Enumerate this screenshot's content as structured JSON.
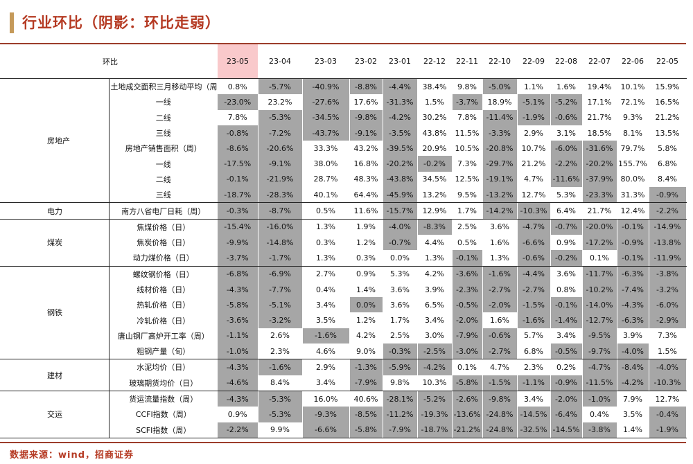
{
  "title": "行业环比（阴影：环比走弱）",
  "header": {
    "label": "环比",
    "columns": [
      "23-05",
      "23-04",
      "23-03",
      "23-02",
      "23-01",
      "22-12",
      "22-11",
      "22-10",
      "22-09",
      "22-08",
      "22-07",
      "22-06",
      "22-05"
    ]
  },
  "colors": {
    "accent": "#b53a23",
    "shade": "#a6a6a6",
    "current_header": "#f9c9cb"
  },
  "sections": [
    {
      "name": "房地产",
      "rows": [
        {
          "label": "土地成交面积三月移动平均（周）",
          "values": [
            "0.8%",
            "-5.7%",
            "-40.9%",
            "-8.8%",
            "-4.4%",
            "38.4%",
            "9.8%",
            "-5.0%",
            "1.1%",
            "1.6%",
            "19.4%",
            "10.1%",
            "15.9%"
          ],
          "shaded": [
            0,
            1,
            1,
            1,
            1,
            0,
            0,
            1,
            0,
            0,
            0,
            0,
            0
          ]
        },
        {
          "label": "一线",
          "values": [
            "-23.0%",
            "23.2%",
            "-27.6%",
            "17.6%",
            "-31.3%",
            "1.5%",
            "-3.7%",
            "18.9%",
            "-5.1%",
            "-5.2%",
            "17.1%",
            "72.1%",
            "16.5%"
          ],
          "shaded": [
            1,
            0,
            1,
            0,
            1,
            0,
            1,
            0,
            1,
            1,
            0,
            0,
            0
          ]
        },
        {
          "label": "二线",
          "values": [
            "7.8%",
            "-5.3%",
            "-34.5%",
            "-9.8%",
            "-4.2%",
            "30.2%",
            "7.8%",
            "-11.4%",
            "-1.9%",
            "-0.6%",
            "21.7%",
            "9.3%",
            "21.2%"
          ],
          "shaded": [
            0,
            1,
            1,
            1,
            1,
            0,
            0,
            1,
            1,
            1,
            0,
            0,
            0
          ]
        },
        {
          "label": "三线",
          "values": [
            "-0.8%",
            "-7.2%",
            "-43.7%",
            "-9.1%",
            "-3.5%",
            "43.8%",
            "11.5%",
            "-3.3%",
            "2.9%",
            "3.1%",
            "18.5%",
            "8.1%",
            "13.5%"
          ],
          "shaded": [
            1,
            1,
            1,
            1,
            1,
            0,
            0,
            1,
            0,
            0,
            0,
            0,
            0
          ]
        },
        {
          "label": "房地产销售面积（周）",
          "values": [
            "-8.6%",
            "-20.6%",
            "33.3%",
            "43.2%",
            "-39.5%",
            "20.9%",
            "10.5%",
            "-20.8%",
            "10.7%",
            "-6.0%",
            "-31.6%",
            "79.7%",
            "5.8%"
          ],
          "shaded": [
            1,
            1,
            0,
            0,
            1,
            0,
            0,
            1,
            0,
            1,
            1,
            0,
            0
          ]
        },
        {
          "label": "一线",
          "values": [
            "-17.5%",
            "-9.1%",
            "38.0%",
            "16.8%",
            "-20.2%",
            "-0.2%",
            "7.3%",
            "-29.7%",
            "21.2%",
            "-2.2%",
            "-20.2%",
            "155.7%",
            "6.8%"
          ],
          "shaded": [
            1,
            1,
            0,
            0,
            1,
            1,
            0,
            1,
            0,
            1,
            1,
            0,
            0
          ]
        },
        {
          "label": "二线",
          "values": [
            "-0.1%",
            "-21.9%",
            "28.7%",
            "48.3%",
            "-43.8%",
            "34.5%",
            "12.5%",
            "-19.1%",
            "4.7%",
            "-11.6%",
            "-37.9%",
            "80.0%",
            "8.4%"
          ],
          "shaded": [
            1,
            1,
            0,
            0,
            1,
            0,
            0,
            1,
            0,
            1,
            1,
            0,
            0
          ]
        },
        {
          "label": "三线",
          "values": [
            "-18.7%",
            "-28.3%",
            "40.1%",
            "64.4%",
            "-45.9%",
            "13.2%",
            "9.5%",
            "-13.2%",
            "12.7%",
            "5.3%",
            "-23.3%",
            "31.3%",
            "-0.9%"
          ],
          "shaded": [
            1,
            1,
            0,
            0,
            1,
            0,
            0,
            1,
            0,
            0,
            1,
            0,
            1
          ]
        }
      ]
    },
    {
      "name": "电力",
      "rows": [
        {
          "label": "南方八省电厂日耗（周）",
          "values": [
            "-0.3%",
            "-8.7%",
            "0.5%",
            "11.6%",
            "-15.7%",
            "12.9%",
            "1.7%",
            "-14.2%",
            "-10.3%",
            "6.4%",
            "21.7%",
            "12.4%",
            "-2.2%"
          ],
          "shaded": [
            1,
            1,
            0,
            0,
            1,
            0,
            0,
            1,
            1,
            0,
            0,
            0,
            1
          ]
        }
      ]
    },
    {
      "name": "煤炭",
      "rows": [
        {
          "label": "焦煤价格（日）",
          "values": [
            "-15.4%",
            "-16.0%",
            "1.3%",
            "1.9%",
            "-4.0%",
            "-8.3%",
            "2.5%",
            "3.6%",
            "-4.7%",
            "-0.7%",
            "-20.0%",
            "-0.1%",
            "-14.9%"
          ],
          "shaded": [
            1,
            1,
            0,
            0,
            1,
            1,
            0,
            0,
            1,
            1,
            1,
            1,
            1
          ]
        },
        {
          "label": "焦炭价格（日）",
          "values": [
            "-9.9%",
            "-14.8%",
            "0.3%",
            "1.2%",
            "-0.7%",
            "4.4%",
            "0.5%",
            "1.6%",
            "-6.6%",
            "0.9%",
            "-17.2%",
            "-0.9%",
            "-13.8%"
          ],
          "shaded": [
            1,
            1,
            0,
            0,
            1,
            0,
            0,
            0,
            1,
            0,
            1,
            1,
            1
          ]
        },
        {
          "label": "动力煤价格（日）",
          "values": [
            "-3.7%",
            "-1.7%",
            "1.3%",
            "0.3%",
            "0.0%",
            "1.3%",
            "-0.1%",
            "1.3%",
            "-0.6%",
            "-0.2%",
            "0.1%",
            "-0.1%",
            "-11.9%"
          ],
          "shaded": [
            1,
            1,
            0,
            0,
            0,
            0,
            1,
            0,
            1,
            1,
            0,
            1,
            1
          ]
        }
      ]
    },
    {
      "name": "钢铁",
      "rows": [
        {
          "label": "螺纹钢价格（日）",
          "values": [
            "-6.8%",
            "-6.9%",
            "2.7%",
            "0.9%",
            "5.3%",
            "4.2%",
            "-3.6%",
            "-1.6%",
            "-4.4%",
            "3.6%",
            "-11.7%",
            "-6.3%",
            "-3.8%"
          ],
          "shaded": [
            1,
            1,
            0,
            0,
            0,
            0,
            1,
            1,
            1,
            0,
            1,
            1,
            1
          ]
        },
        {
          "label": "线材价格（日）",
          "values": [
            "-4.3%",
            "-7.7%",
            "0.4%",
            "1.4%",
            "3.6%",
            "3.9%",
            "-2.3%",
            "-2.7%",
            "-2.7%",
            "0.8%",
            "-10.2%",
            "-7.4%",
            "-3.2%"
          ],
          "shaded": [
            1,
            1,
            0,
            0,
            0,
            0,
            1,
            1,
            1,
            0,
            1,
            1,
            1
          ]
        },
        {
          "label": "热轧价格（日）",
          "values": [
            "-5.8%",
            "-5.1%",
            "3.4%",
            "0.0%",
            "3.6%",
            "6.5%",
            "-0.5%",
            "-2.0%",
            "-1.5%",
            "-0.1%",
            "-14.0%",
            "-4.3%",
            "-6.0%"
          ],
          "shaded": [
            1,
            1,
            0,
            1,
            0,
            0,
            1,
            1,
            1,
            1,
            1,
            1,
            1
          ]
        },
        {
          "label": "冷轧价格（日）",
          "values": [
            "-3.6%",
            "-3.2%",
            "3.5%",
            "1.2%",
            "1.7%",
            "3.4%",
            "-2.0%",
            "1.6%",
            "-1.6%",
            "-1.4%",
            "-12.7%",
            "-6.3%",
            "-2.9%"
          ],
          "shaded": [
            1,
            1,
            0,
            0,
            0,
            0,
            1,
            0,
            1,
            1,
            1,
            1,
            1
          ]
        },
        {
          "label": "唐山钢厂高炉开工率（周）",
          "values": [
            "-1.1%",
            "2.6%",
            "-1.6%",
            "4.2%",
            "2.5%",
            "3.0%",
            "-7.9%",
            "-0.6%",
            "5.7%",
            "3.4%",
            "-9.5%",
            "3.9%",
            "7.3%"
          ],
          "shaded": [
            1,
            0,
            1,
            0,
            0,
            0,
            1,
            1,
            0,
            0,
            1,
            0,
            0
          ]
        },
        {
          "label": "粗钢产量（旬）",
          "values": [
            "-1.0%",
            "2.3%",
            "4.6%",
            "9.0%",
            "-0.3%",
            "-2.5%",
            "-3.0%",
            "-2.7%",
            "6.8%",
            "-0.5%",
            "-9.7%",
            "-4.0%",
            "1.5%"
          ],
          "shaded": [
            1,
            0,
            0,
            0,
            1,
            1,
            1,
            1,
            0,
            1,
            1,
            1,
            0
          ]
        }
      ]
    },
    {
      "name": "建材",
      "rows": [
        {
          "label": "水泥均价（日）",
          "values": [
            "-4.3%",
            "-1.6%",
            "2.9%",
            "-1.3%",
            "-5.9%",
            "-4.2%",
            "0.1%",
            "4.7%",
            "2.3%",
            "0.2%",
            "-4.7%",
            "-8.4%",
            "-4.0%"
          ],
          "shaded": [
            1,
            1,
            0,
            1,
            1,
            1,
            0,
            0,
            0,
            0,
            1,
            1,
            1
          ]
        },
        {
          "label": "玻璃期货均价（日）",
          "values": [
            "-4.6%",
            "8.4%",
            "3.4%",
            "-7.9%",
            "9.8%",
            "10.3%",
            "-5.8%",
            "-1.5%",
            "-1.1%",
            "-0.9%",
            "-11.5%",
            "-4.2%",
            "-10.3%"
          ],
          "shaded": [
            1,
            0,
            0,
            1,
            0,
            0,
            1,
            1,
            1,
            1,
            1,
            1,
            1
          ]
        }
      ]
    },
    {
      "name": "交运",
      "rows": [
        {
          "label": "货运流量指数（周）",
          "values": [
            "-4.3%",
            "-5.3%",
            "16.0%",
            "40.6%",
            "-28.1%",
            "-5.2%",
            "-2.6%",
            "-9.8%",
            "3.4%",
            "-2.0%",
            "-1.0%",
            "7.9%",
            "12.7%"
          ],
          "shaded": [
            1,
            1,
            0,
            0,
            1,
            1,
            1,
            1,
            0,
            1,
            1,
            0,
            0
          ]
        },
        {
          "label": "CCFI指数（周）",
          "values": [
            "0.9%",
            "-5.3%",
            "-9.3%",
            "-8.5%",
            "-11.2%",
            "-19.3%",
            "-13.6%",
            "-24.8%",
            "-14.5%",
            "-6.4%",
            "0.4%",
            "3.5%",
            "-0.4%"
          ],
          "shaded": [
            0,
            1,
            1,
            1,
            1,
            1,
            1,
            1,
            1,
            1,
            0,
            0,
            1
          ]
        },
        {
          "label": "SCFI指数（周）",
          "values": [
            "-2.2%",
            "9.9%",
            "-6.6%",
            "-5.8%",
            "-7.9%",
            "-18.7%",
            "-21.2%",
            "-24.8%",
            "-32.5%",
            "-14.5%",
            "-3.8%",
            "1.4%",
            "-1.9%"
          ],
          "shaded": [
            1,
            0,
            1,
            1,
            1,
            1,
            1,
            1,
            1,
            1,
            1,
            0,
            1
          ]
        }
      ]
    }
  ],
  "source": "数据来源：wind，招商证券"
}
